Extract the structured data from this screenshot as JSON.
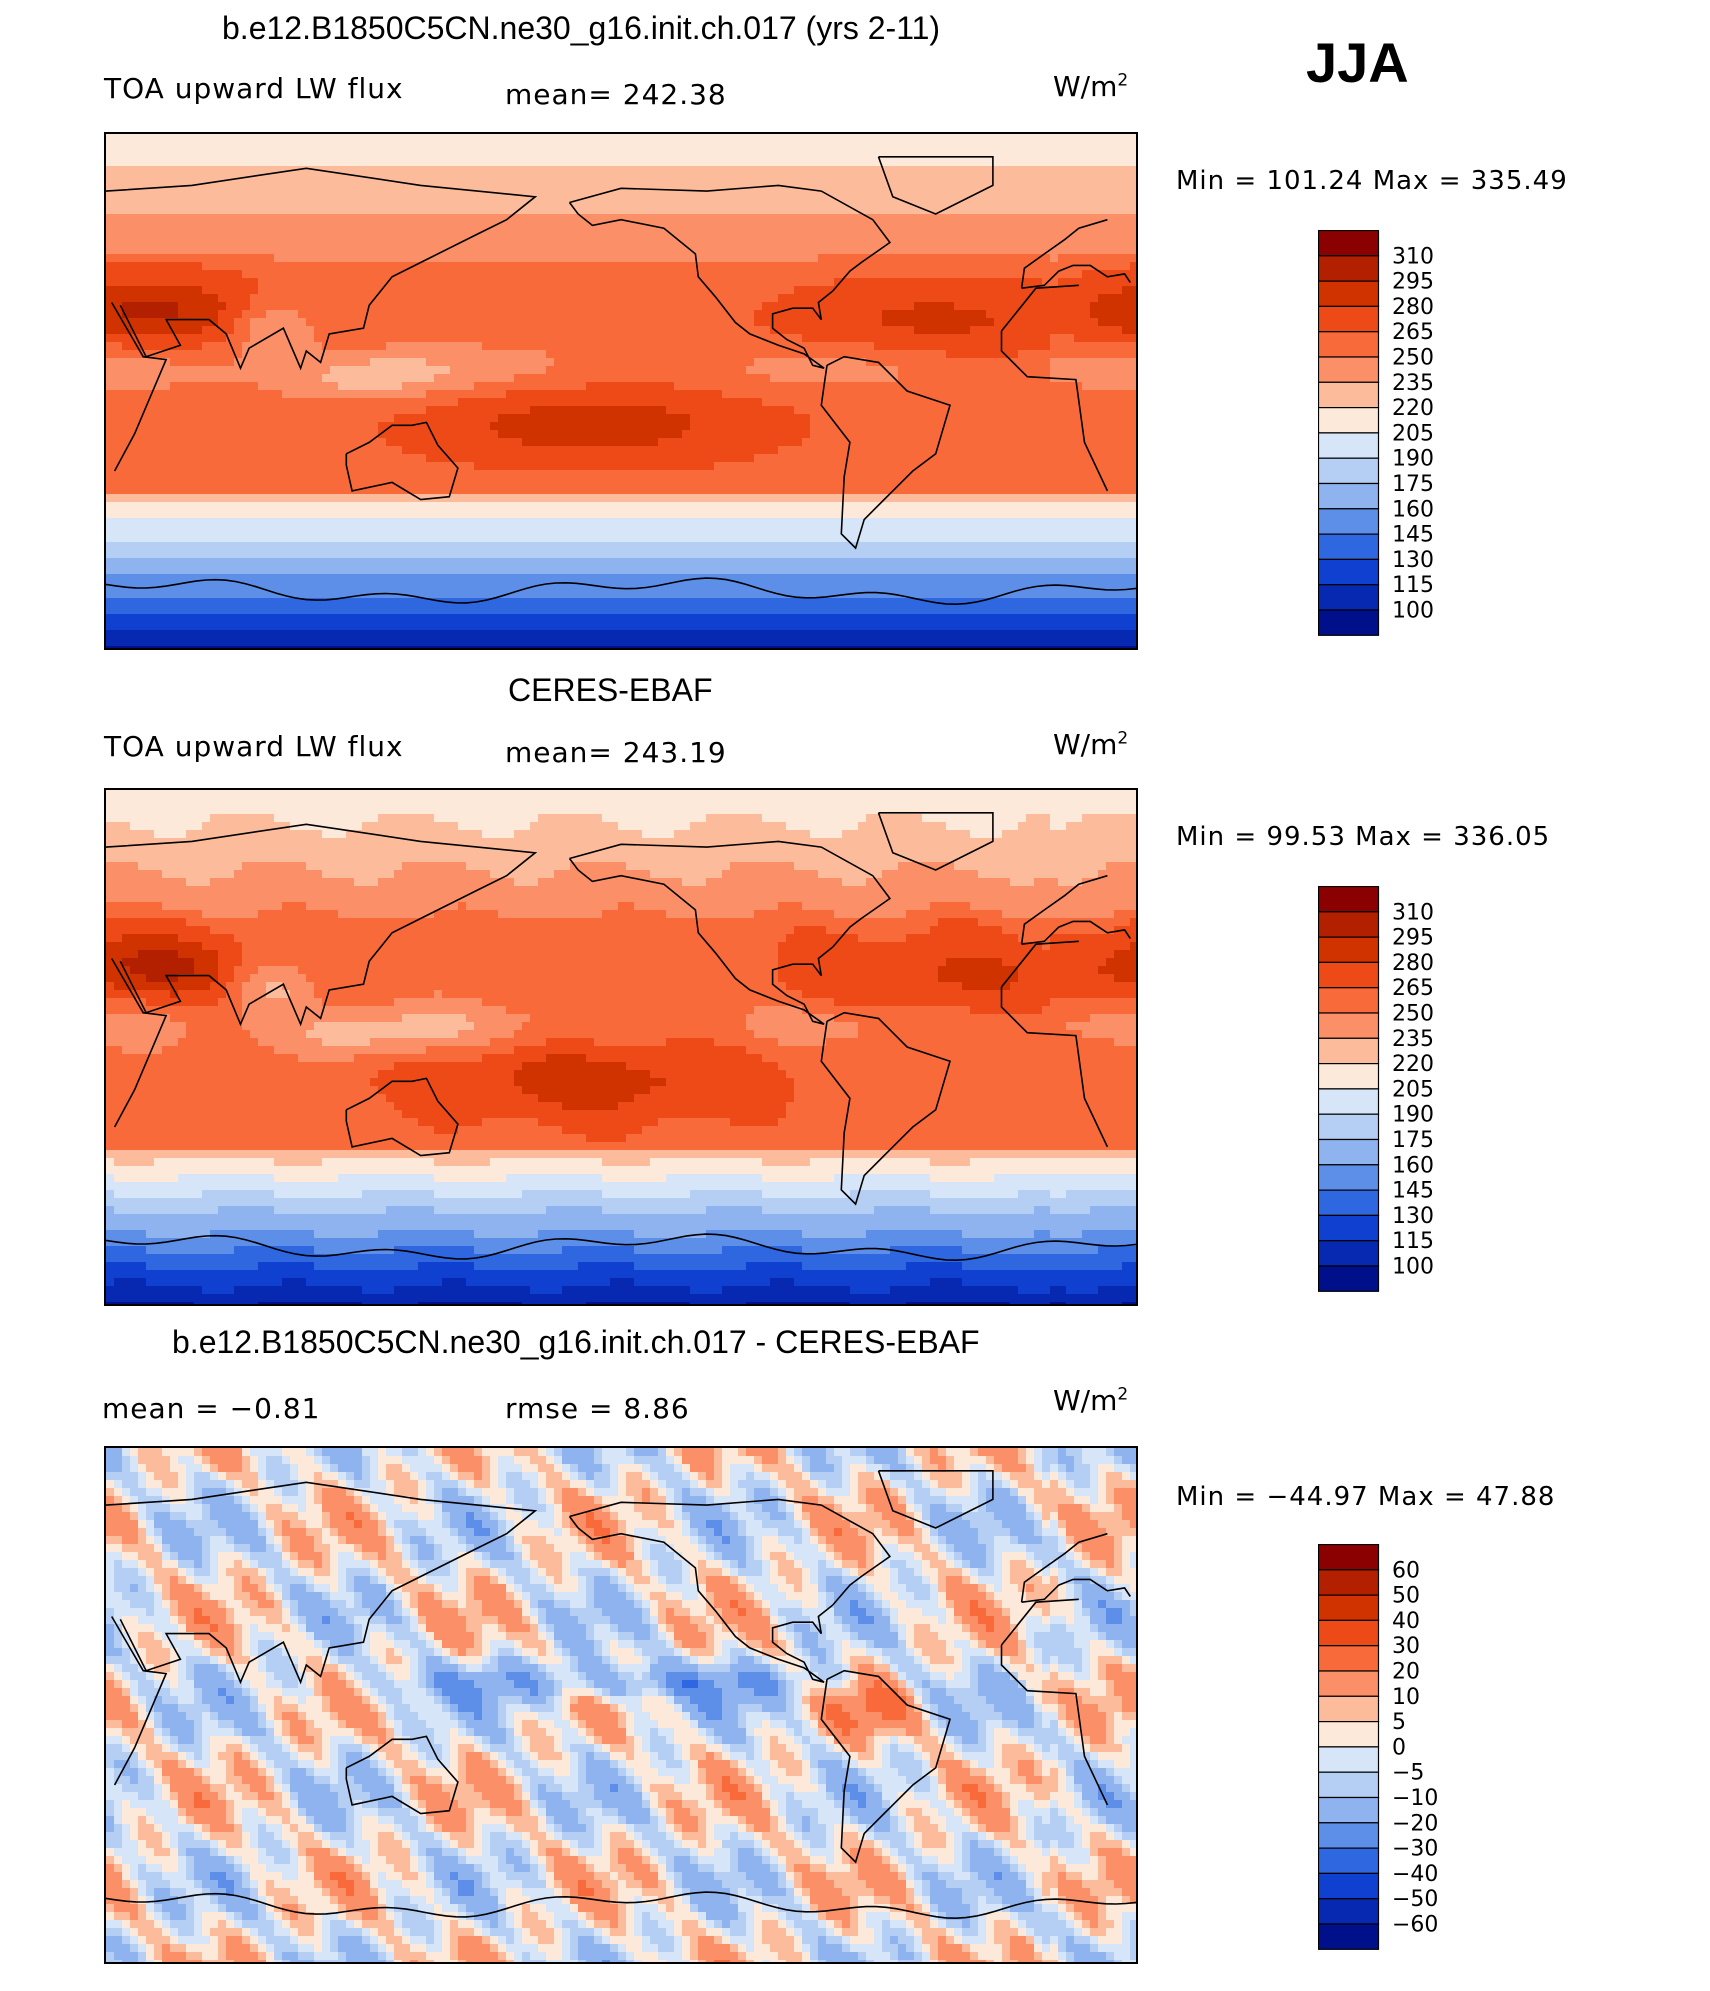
{
  "season": "JJA",
  "panels": [
    {
      "title": "b.e12.B1850C5CN.ne30_g16.init.ch.017 (yrs 2-11)",
      "left_label": "TOA upward LW flux",
      "center_label": "mean=  242.38",
      "unit_base": "W/m",
      "unit_exp": "2",
      "minmax": "Min  =  101.24  Max  =  335.49",
      "kind": "field",
      "colorbar": {
        "labels": [
          "310",
          "295",
          "280",
          "265",
          "250",
          "235",
          "220",
          "205",
          "190",
          "175",
          "160",
          "145",
          "130",
          "115",
          "100"
        ],
        "colors": [
          "#8b0000",
          "#b22000",
          "#d13300",
          "#ee4a17",
          "#f86a3a",
          "#fb9068",
          "#fcbc9c",
          "#fde9d9",
          "#d6e6f8",
          "#b5cff4",
          "#8fb3ee",
          "#5d8ee8",
          "#2f67e0",
          "#1040d0",
          "#0728b0",
          "#00108a"
        ]
      }
    },
    {
      "title": "CERES-EBAF",
      "left_label": "TOA upward LW flux",
      "center_label": "mean=  243.19",
      "unit_base": "W/m",
      "unit_exp": "2",
      "minmax": "Min  =   99.53  Max  =  336.05",
      "kind": "field",
      "colorbar": {
        "labels": [
          "310",
          "295",
          "280",
          "265",
          "250",
          "235",
          "220",
          "205",
          "190",
          "175",
          "160",
          "145",
          "130",
          "115",
          "100"
        ],
        "colors": [
          "#8b0000",
          "#b22000",
          "#d13300",
          "#ee4a17",
          "#f86a3a",
          "#fb9068",
          "#fcbc9c",
          "#fde9d9",
          "#d6e6f8",
          "#b5cff4",
          "#8fb3ee",
          "#5d8ee8",
          "#2f67e0",
          "#1040d0",
          "#0728b0",
          "#00108a"
        ]
      }
    },
    {
      "title": "b.e12.B1850C5CN.ne30_g16.init.ch.017 - CERES-EBAF",
      "left_label": "mean  =    −0.81",
      "center_label": "rmse  =     8.86",
      "unit_base": "W/m",
      "unit_exp": "2",
      "minmax": "Min  =  −44.97  Max  =    47.88",
      "kind": "diff",
      "colorbar": {
        "labels": [
          "60",
          "50",
          "40",
          "30",
          "20",
          "10",
          "5",
          "0",
          "−5",
          "−10",
          "−20",
          "−30",
          "−40",
          "−50",
          "−60"
        ],
        "colors": [
          "#8b0000",
          "#b22000",
          "#d13300",
          "#ee4a17",
          "#f86a3a",
          "#fb9068",
          "#fcbc9c",
          "#fde9d9",
          "#d6e6f8",
          "#b5cff4",
          "#8fb3ee",
          "#5d8ee8",
          "#2f67e0",
          "#1040d0",
          "#0728b0",
          "#00108a"
        ]
      }
    }
  ],
  "chart_data": [
    {
      "type": "heatmap",
      "title": "b.e12.B1850C5CN.ne30_g16.init.ch.017 (yrs 2-11)",
      "variable": "TOA upward LW flux",
      "units": "W/m2",
      "season": "JJA",
      "mean": 242.38,
      "min": 101.24,
      "max": 335.49,
      "levels": [
        100,
        115,
        130,
        145,
        160,
        175,
        190,
        205,
        220,
        235,
        250,
        265,
        280,
        295,
        310
      ]
    },
    {
      "type": "heatmap",
      "title": "CERES-EBAF",
      "variable": "TOA upward LW flux",
      "units": "W/m2",
      "season": "JJA",
      "mean": 243.19,
      "min": 99.53,
      "max": 336.05,
      "levels": [
        100,
        115,
        130,
        145,
        160,
        175,
        190,
        205,
        220,
        235,
        250,
        265,
        280,
        295,
        310
      ]
    },
    {
      "type": "heatmap",
      "title": "b.e12.B1850C5CN.ne30_g16.init.ch.017 - CERES-EBAF",
      "units": "W/m2",
      "season": "JJA",
      "mean": -0.81,
      "rmse": 8.86,
      "min": -44.97,
      "max": 47.88,
      "levels": [
        -60,
        -50,
        -40,
        -30,
        -20,
        -10,
        -5,
        0,
        5,
        10,
        20,
        30,
        40,
        50,
        60
      ]
    }
  ]
}
